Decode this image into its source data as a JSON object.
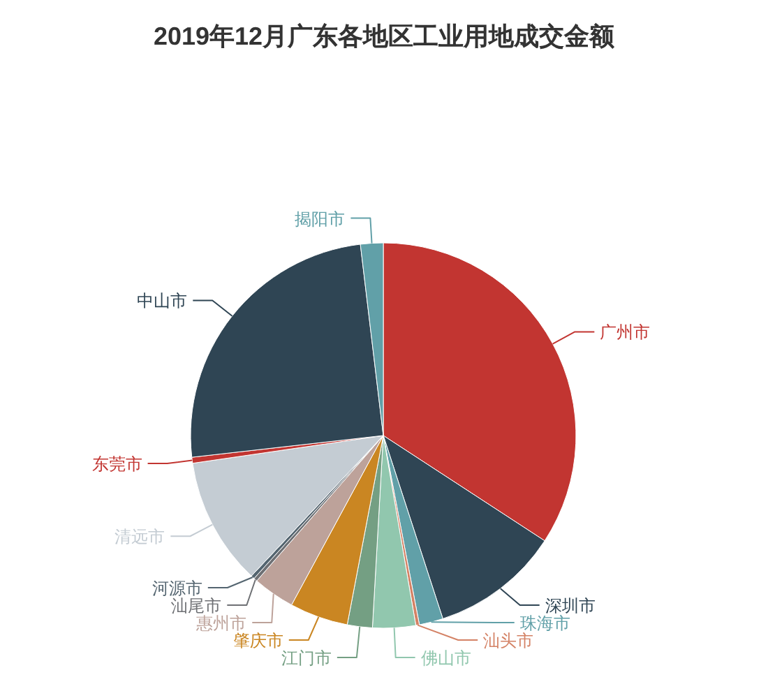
{
  "chart_data": {
    "type": "pie",
    "title": "2019年12月广东各地区工业用地成交金额",
    "categories": [
      "广州市",
      "深圳市",
      "珠海市",
      "汕头市",
      "佛山市",
      "江门市",
      "肇庆市",
      "惠州市",
      "汕尾市",
      "河源市",
      "清远市",
      "东莞市",
      "中山市",
      "揭阳市"
    ],
    "values": [
      34.2,
      10.8,
      2.0,
      0.3,
      3.6,
      2.1,
      4.9,
      3.5,
      0.3,
      0.3,
      10.7,
      0.5,
      24.9,
      1.9
    ],
    "colors": [
      "#c23531",
      "#2f4554",
      "#61a0a8",
      "#d48265",
      "#91c7ae",
      "#749f83",
      "#ca8622",
      "#bda29a",
      "#6e7074",
      "#546570",
      "#c4ccd3",
      "#c23531",
      "#2f4554",
      "#61a0a8"
    ]
  }
}
